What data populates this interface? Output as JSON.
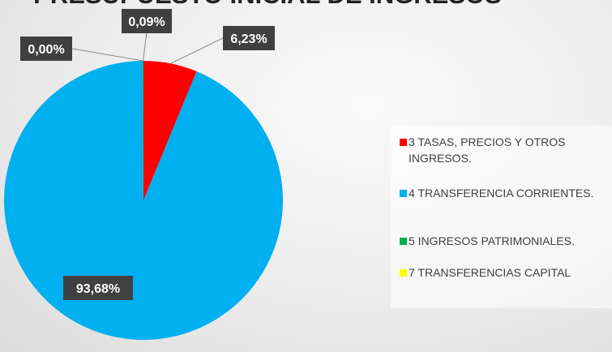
{
  "chart_data": {
    "type": "pie",
    "title": "PRESUPUESTO INICIAL DE INGRESOS",
    "categories": [
      "3 TASAS, PRECIOS Y OTROS INGRESOS.",
      "4 TRANSFERENCIA CORRIENTES.",
      "5 INGRESOS PATRIMONIALES.",
      "7 TRANSFERENCIAS CAPITAL"
    ],
    "values": [
      6.23,
      93.68,
      0.09,
      0.0
    ],
    "value_labels": [
      "6,23%",
      "93,68%",
      "0,09%",
      "0,00%"
    ],
    "colors": [
      "#ff0000",
      "#00b0f0",
      "#00b050",
      "#ffff00"
    ],
    "legend": "right"
  }
}
